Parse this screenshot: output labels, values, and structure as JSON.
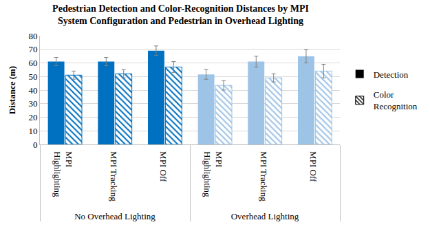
{
  "chart_data": {
    "type": "bar",
    "title": "Pedestrian Detection and Color-Recognition Distances by MPI System Configuration and Pedestrian in Overhead Lighting",
    "y_label": "Distance (m)",
    "categories": [
      "MPI Highlighting",
      "MPI Tracking",
      "MPI Off",
      "MPI Highlighting",
      "MPI Tracking",
      "MPI Off"
    ],
    "category_groups": [
      "No Overhead Lighting",
      "No Overhead Lighting",
      "No Overhead Lighting",
      "Overhead Lighting",
      "Overhead Lighting",
      "Overhead Lighting"
    ],
    "series": [
      {
        "name": "Detection",
        "color": "#000000",
        "marker": "solid",
        "colors": [
          "#0070c0",
          "#0070c0",
          "#0070c0",
          "#9dc3e6",
          "#9dc3e6",
          "#9dc3e6"
        ],
        "values": [
          61,
          61,
          69,
          51.5,
          61,
          65
        ],
        "error": [
          3,
          3,
          3.5,
          3.5,
          4,
          5
        ]
      },
      {
        "name": "Color Recognition",
        "color": "#000000",
        "marker": "hatched",
        "colors": [
          "#0070c0",
          "#0070c0",
          "#0070c0",
          "#9dc3e6",
          "#9dc3e6",
          "#9dc3e6"
        ],
        "values": [
          51,
          52,
          57,
          43.5,
          49,
          54
        ],
        "error": [
          3,
          3,
          4,
          3.5,
          3,
          5
        ]
      }
    ],
    "ylim": [
      0,
      80
    ],
    "yticks": [
      0,
      10,
      20,
      30,
      40,
      50,
      60,
      70,
      80
    ],
    "grid": true,
    "legend": "right"
  }
}
